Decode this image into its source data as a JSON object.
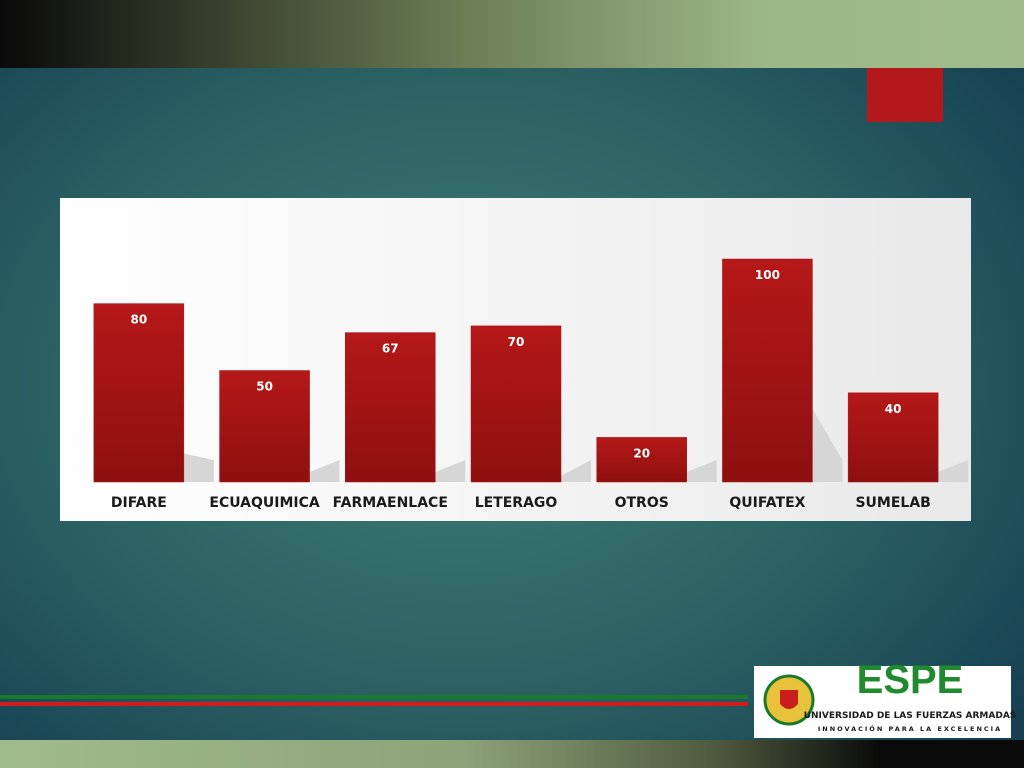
{
  "chart_data": {
    "type": "bar",
    "categories": [
      "DIFARE",
      "ECUAQUIMICA",
      "FARMAENLACE",
      "LETERAGO",
      "OTROS",
      "QUIFATEX",
      "SUMELAB"
    ],
    "values": [
      80,
      50,
      67,
      70,
      20,
      100,
      40
    ],
    "color": "#a81414"
  },
  "logo": {
    "name": "ESPE",
    "subtitle": "UNIVERSIDAD DE LAS FUERZAS ARMADAS",
    "motto": "INNOVACIÓN PARA LA EXCELENCIA"
  }
}
